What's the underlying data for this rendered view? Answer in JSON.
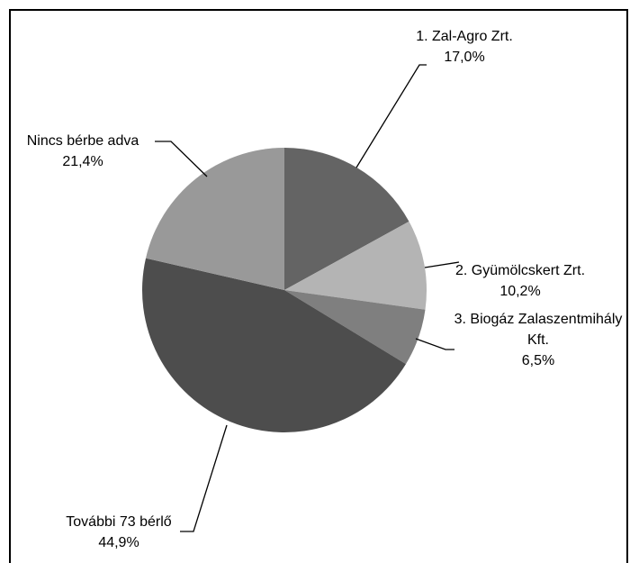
{
  "chart_data": {
    "type": "pie",
    "categories": [
      "1. Zal-Agro Zrt.",
      "2. Gyümölcskert Zrt.",
      "3. Biogáz Zalaszentmihály Kft.",
      "További 73 bérlő",
      "Nincs bérbe adva"
    ],
    "values": [
      17.0,
      10.2,
      6.5,
      44.9,
      21.4
    ],
    "value_labels": [
      "17,0%",
      "10,2%",
      "6,5%",
      "44,9%",
      "21,4%"
    ],
    "colors": [
      "#646464",
      "#b4b4b4",
      "#7f7f7f",
      "#4d4d4d",
      "#999999"
    ]
  }
}
